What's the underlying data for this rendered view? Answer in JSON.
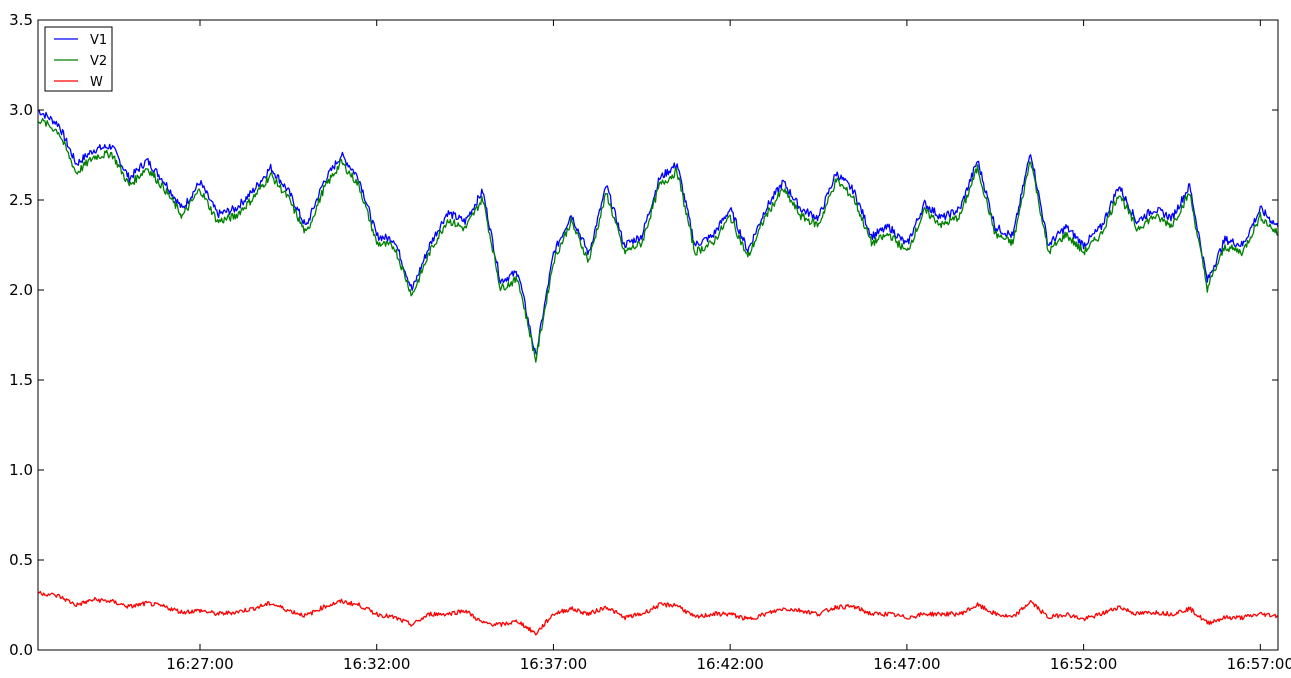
{
  "chart_data": {
    "type": "line",
    "title": "",
    "xlabel": "",
    "ylabel": "",
    "xlim": [
      "16:22:25",
      "16:57:30"
    ],
    "ylim": [
      0.0,
      3.5
    ],
    "yticks": [
      "0.0",
      "0.5",
      "1.0",
      "1.5",
      "2.0",
      "2.5",
      "3.0",
      "3.5"
    ],
    "xticks": [
      "16:27:00",
      "16:32:00",
      "16:37:00",
      "16:42:00",
      "16:47:00",
      "16:52:00",
      "16:57:00"
    ],
    "grid": false,
    "legend_position": "upper-left",
    "series": [
      {
        "name": "V1",
        "color": "#0000ff",
        "x": [
          "16:22:25",
          "16:23:00",
          "16:23:30",
          "16:24:00",
          "16:24:30",
          "16:25:00",
          "16:25:30",
          "16:26:00",
          "16:26:30",
          "16:27:00",
          "16:27:30",
          "16:28:00",
          "16:28:30",
          "16:29:00",
          "16:29:30",
          "16:30:00",
          "16:30:30",
          "16:31:00",
          "16:31:30",
          "16:32:00",
          "16:32:30",
          "16:33:00",
          "16:33:30",
          "16:34:00",
          "16:34:30",
          "16:35:00",
          "16:35:30",
          "16:36:00",
          "16:36:30",
          "16:37:00",
          "16:37:30",
          "16:38:00",
          "16:38:30",
          "16:39:00",
          "16:39:30",
          "16:40:00",
          "16:40:30",
          "16:41:00",
          "16:41:30",
          "16:42:00",
          "16:42:30",
          "16:43:00",
          "16:43:30",
          "16:44:00",
          "16:44:30",
          "16:45:00",
          "16:45:30",
          "16:46:00",
          "16:46:30",
          "16:47:00",
          "16:47:30",
          "16:48:00",
          "16:48:30",
          "16:49:00",
          "16:49:30",
          "16:50:00",
          "16:50:30",
          "16:51:00",
          "16:51:30",
          "16:52:00",
          "16:52:30",
          "16:53:00",
          "16:53:30",
          "16:54:00",
          "16:54:30",
          "16:55:00",
          "16:55:30",
          "16:56:00",
          "16:56:30",
          "16:57:00",
          "16:57:30"
        ],
        "y": [
          3.0,
          2.92,
          2.7,
          2.78,
          2.8,
          2.62,
          2.72,
          2.6,
          2.45,
          2.6,
          2.42,
          2.45,
          2.55,
          2.68,
          2.55,
          2.35,
          2.6,
          2.75,
          2.62,
          2.3,
          2.28,
          2.0,
          2.25,
          2.43,
          2.38,
          2.55,
          2.05,
          2.1,
          1.63,
          2.2,
          2.42,
          2.2,
          2.58,
          2.25,
          2.3,
          2.62,
          2.7,
          2.25,
          2.3,
          2.45,
          2.22,
          2.45,
          2.6,
          2.45,
          2.4,
          2.65,
          2.55,
          2.3,
          2.35,
          2.25,
          2.48,
          2.4,
          2.45,
          2.72,
          2.35,
          2.3,
          2.77,
          2.25,
          2.35,
          2.25,
          2.35,
          2.58,
          2.38,
          2.45,
          2.4,
          2.58,
          2.05,
          2.28,
          2.25,
          2.45,
          2.35
        ]
      },
      {
        "name": "V2",
        "color": "#008000",
        "x": [
          "16:22:25",
          "16:23:00",
          "16:23:30",
          "16:24:00",
          "16:24:30",
          "16:25:00",
          "16:25:30",
          "16:26:00",
          "16:26:30",
          "16:27:00",
          "16:27:30",
          "16:28:00",
          "16:28:30",
          "16:29:00",
          "16:29:30",
          "16:30:00",
          "16:30:30",
          "16:31:00",
          "16:31:30",
          "16:32:00",
          "16:32:30",
          "16:33:00",
          "16:33:30",
          "16:34:00",
          "16:34:30",
          "16:35:00",
          "16:35:30",
          "16:36:00",
          "16:36:30",
          "16:37:00",
          "16:37:30",
          "16:38:00",
          "16:38:30",
          "16:39:00",
          "16:39:30",
          "16:40:00",
          "16:40:30",
          "16:41:00",
          "16:41:30",
          "16:42:00",
          "16:42:30",
          "16:43:00",
          "16:43:30",
          "16:44:00",
          "16:44:30",
          "16:45:00",
          "16:45:30",
          "16:46:00",
          "16:46:30",
          "16:47:00",
          "16:47:30",
          "16:48:00",
          "16:48:30",
          "16:49:00",
          "16:49:30",
          "16:50:00",
          "16:50:30",
          "16:51:00",
          "16:51:30",
          "16:52:00",
          "16:52:30",
          "16:53:00",
          "16:53:30",
          "16:54:00",
          "16:54:30",
          "16:55:00",
          "16:55:30",
          "16:56:00",
          "16:56:30",
          "16:57:00",
          "16:57:30"
        ],
        "y": [
          2.95,
          2.88,
          2.65,
          2.74,
          2.76,
          2.58,
          2.68,
          2.56,
          2.41,
          2.56,
          2.38,
          2.41,
          2.51,
          2.64,
          2.51,
          2.31,
          2.56,
          2.71,
          2.58,
          2.26,
          2.24,
          1.97,
          2.21,
          2.39,
          2.34,
          2.51,
          2.01,
          2.06,
          1.61,
          2.16,
          2.38,
          2.16,
          2.54,
          2.21,
          2.26,
          2.58,
          2.66,
          2.21,
          2.26,
          2.41,
          2.18,
          2.41,
          2.56,
          2.41,
          2.36,
          2.61,
          2.51,
          2.26,
          2.31,
          2.21,
          2.44,
          2.36,
          2.41,
          2.68,
          2.31,
          2.26,
          2.73,
          2.21,
          2.31,
          2.21,
          2.31,
          2.54,
          2.34,
          2.41,
          2.36,
          2.54,
          2.01,
          2.24,
          2.21,
          2.41,
          2.31
        ]
      },
      {
        "name": "W",
        "color": "#ff0000",
        "x": [
          "16:22:25",
          "16:23:00",
          "16:23:30",
          "16:24:00",
          "16:24:30",
          "16:25:00",
          "16:25:30",
          "16:26:00",
          "16:26:30",
          "16:27:00",
          "16:27:30",
          "16:28:00",
          "16:28:30",
          "16:29:00",
          "16:29:30",
          "16:30:00",
          "16:30:30",
          "16:31:00",
          "16:31:30",
          "16:32:00",
          "16:32:30",
          "16:33:00",
          "16:33:30",
          "16:34:00",
          "16:34:30",
          "16:35:00",
          "16:35:30",
          "16:36:00",
          "16:36:30",
          "16:37:00",
          "16:37:30",
          "16:38:00",
          "16:38:30",
          "16:39:00",
          "16:39:30",
          "16:40:00",
          "16:40:30",
          "16:41:00",
          "16:41:30",
          "16:42:00",
          "16:42:30",
          "16:43:00",
          "16:43:30",
          "16:44:00",
          "16:44:30",
          "16:45:00",
          "16:45:30",
          "16:46:00",
          "16:46:30",
          "16:47:00",
          "16:47:30",
          "16:48:00",
          "16:48:30",
          "16:49:00",
          "16:49:30",
          "16:50:00",
          "16:50:30",
          "16:51:00",
          "16:51:30",
          "16:52:00",
          "16:52:30",
          "16:53:00",
          "16:53:30",
          "16:54:00",
          "16:54:30",
          "16:55:00",
          "16:55:30",
          "16:56:00",
          "16:56:30",
          "16:57:00",
          "16:57:30"
        ],
        "y": [
          0.32,
          0.3,
          0.25,
          0.28,
          0.27,
          0.24,
          0.26,
          0.24,
          0.21,
          0.22,
          0.2,
          0.21,
          0.23,
          0.26,
          0.22,
          0.19,
          0.24,
          0.27,
          0.25,
          0.2,
          0.18,
          0.14,
          0.2,
          0.2,
          0.22,
          0.15,
          0.14,
          0.16,
          0.09,
          0.2,
          0.23,
          0.2,
          0.24,
          0.18,
          0.2,
          0.25,
          0.25,
          0.18,
          0.2,
          0.2,
          0.17,
          0.2,
          0.23,
          0.22,
          0.2,
          0.24,
          0.24,
          0.2,
          0.2,
          0.18,
          0.2,
          0.2,
          0.2,
          0.25,
          0.2,
          0.18,
          0.27,
          0.18,
          0.2,
          0.17,
          0.2,
          0.24,
          0.2,
          0.21,
          0.2,
          0.23,
          0.15,
          0.18,
          0.18,
          0.2,
          0.19
        ]
      }
    ]
  }
}
